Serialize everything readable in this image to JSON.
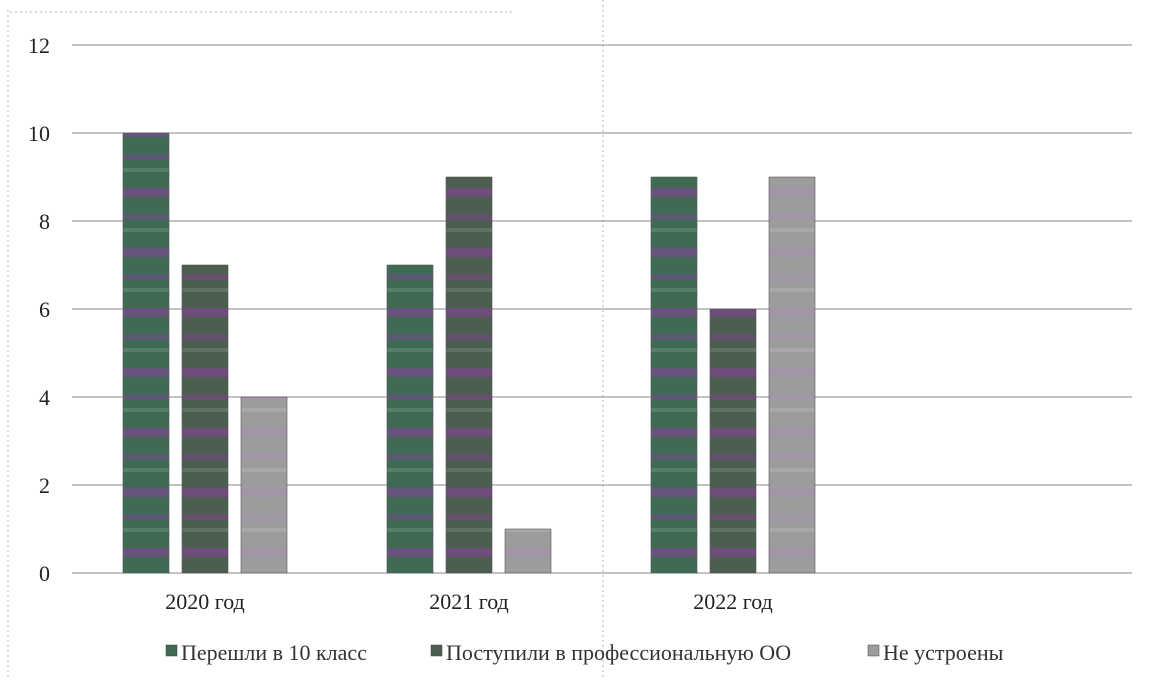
{
  "chart_data": {
    "type": "bar",
    "categories": [
      "2020 год",
      "2021 год",
      "2022 год"
    ],
    "series": [
      {
        "name": "Перешли в 10 класс",
        "values": [
          10,
          7,
          9
        ],
        "color": "#3e6b52",
        "accent": "#8a3fa3"
      },
      {
        "name": "Поступили в профессиональную ОО",
        "values": [
          7,
          9,
          6
        ],
        "color": "#4b5e4f",
        "accent": "#8b3f9a"
      },
      {
        "name": "Не устроены",
        "values": [
          4,
          1,
          9
        ],
        "color": "#9c9c9c",
        "accent": "#a88fb3"
      }
    ],
    "ylim": [
      0,
      12
    ],
    "yticks": [
      0,
      2,
      4,
      6,
      8,
      10,
      12
    ],
    "grid": true,
    "legend_position": "bottom",
    "title": "",
    "xlabel": "",
    "ylabel": ""
  }
}
